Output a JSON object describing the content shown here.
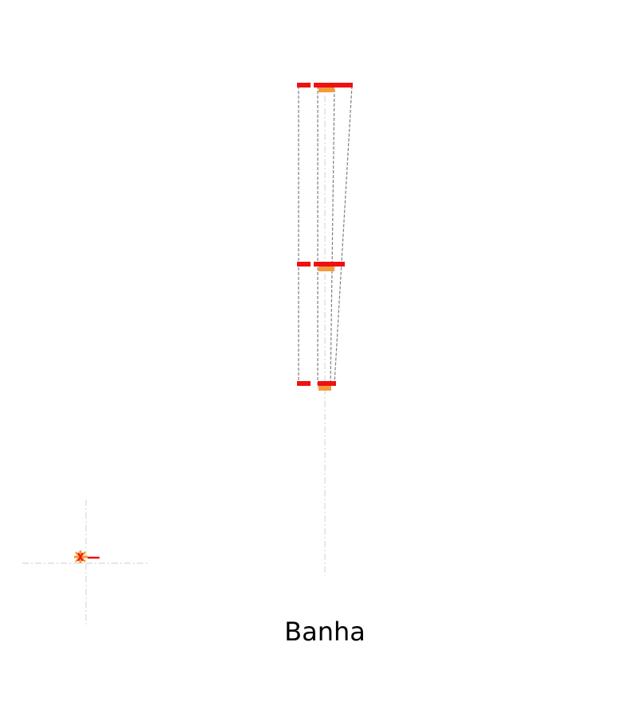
{
  "caption": "Banha",
  "colors": {
    "background": "#ffffff",
    "outline": "#808080",
    "guide": "#d8d8d8",
    "marker_red": "#ee1111",
    "marker_orange": "#f39a3c",
    "caption": "#000000"
  },
  "icons": [
    "burst-icon"
  ]
}
